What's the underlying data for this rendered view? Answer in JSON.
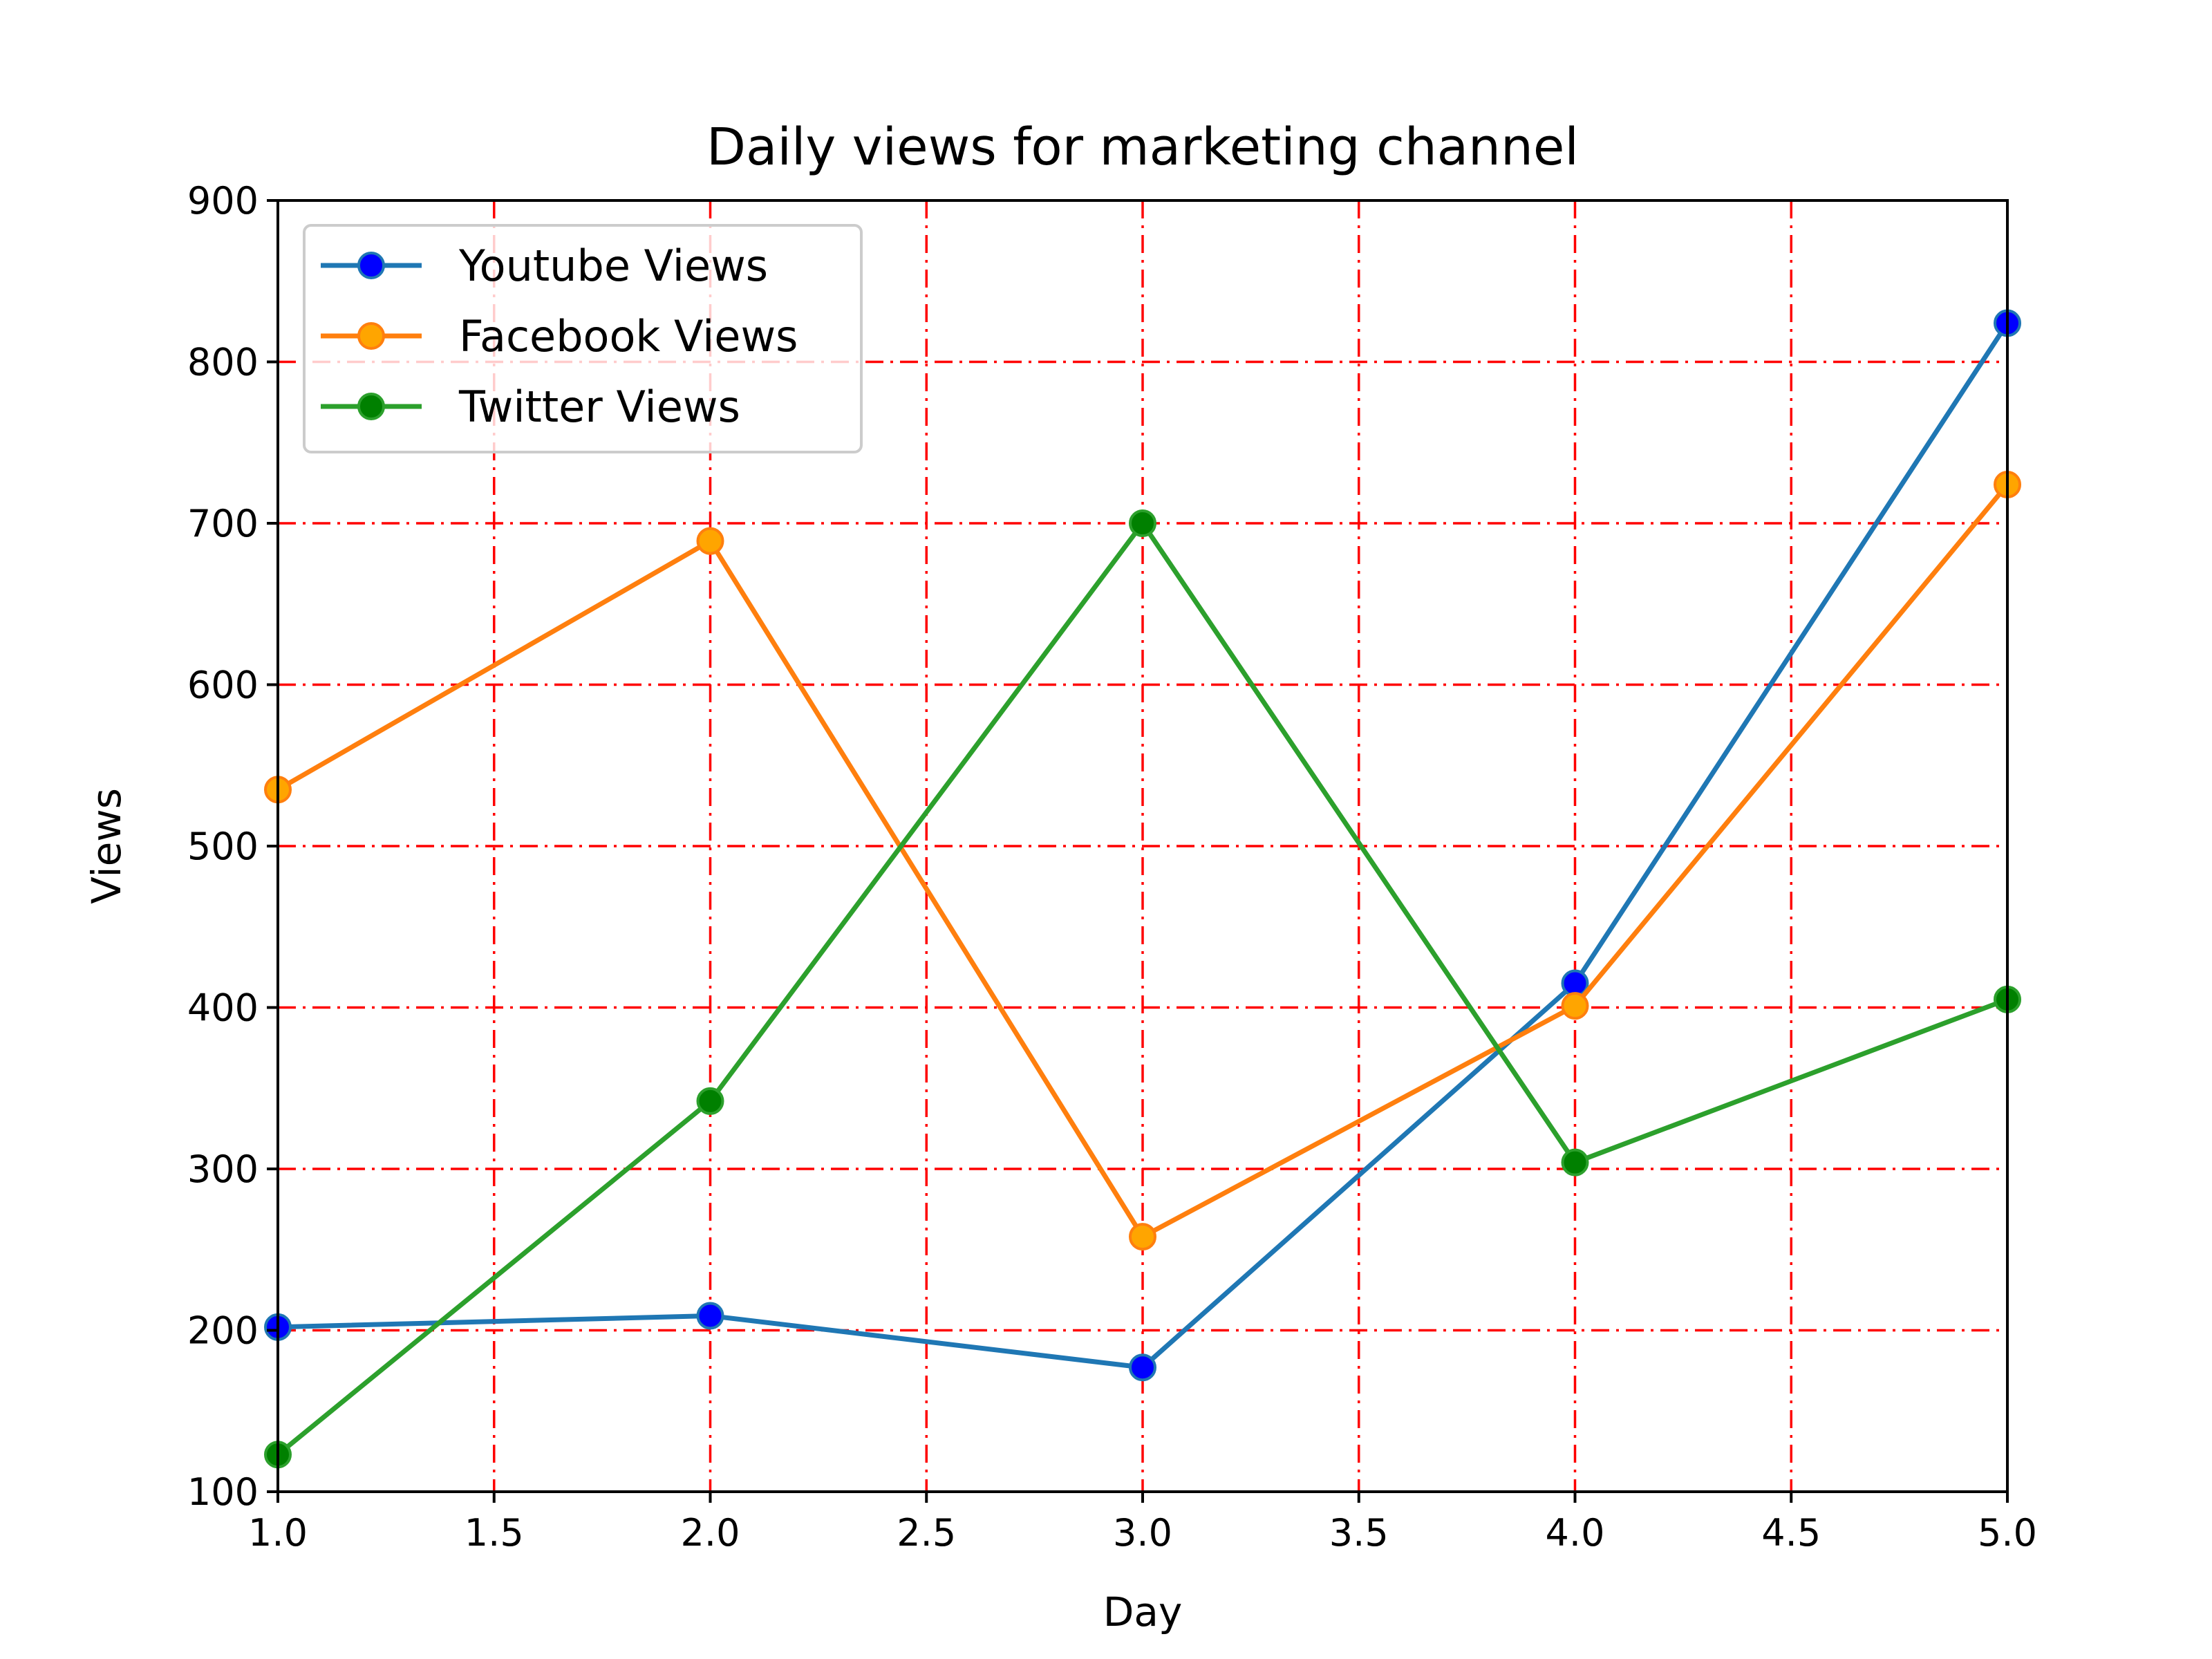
{
  "chart_data": {
    "type": "line",
    "title": "Daily views for marketing channel",
    "xlabel": "Day",
    "ylabel": "Views",
    "xlim": [
      1.0,
      5.0
    ],
    "ylim": [
      100,
      900
    ],
    "x_ticks": [
      "1.0",
      "1.5",
      "2.0",
      "2.5",
      "3.0",
      "3.5",
      "4.0",
      "4.5",
      "5.0"
    ],
    "y_ticks": [
      "100",
      "200",
      "300",
      "400",
      "500",
      "600",
      "700",
      "800",
      "900"
    ],
    "x": [
      1,
      2,
      3,
      4,
      5
    ],
    "grid": true,
    "grid_style": "dash-dot",
    "grid_color": "#ff0000",
    "legend_position": "upper-left",
    "series": [
      {
        "name": "Youtube Views",
        "values": [
          202,
          209,
          177,
          415,
          824
        ],
        "line_color": "#1f77b4",
        "marker_color": "#0000ff"
      },
      {
        "name": "Facebook Views",
        "values": [
          535,
          689,
          258,
          401,
          724
        ],
        "line_color": "#ff7f0e",
        "marker_color": "#ffa500"
      },
      {
        "name": "Twitter Views",
        "values": [
          123,
          342,
          700,
          304,
          405
        ],
        "line_color": "#2ca02c",
        "marker_color": "#008000"
      }
    ]
  }
}
